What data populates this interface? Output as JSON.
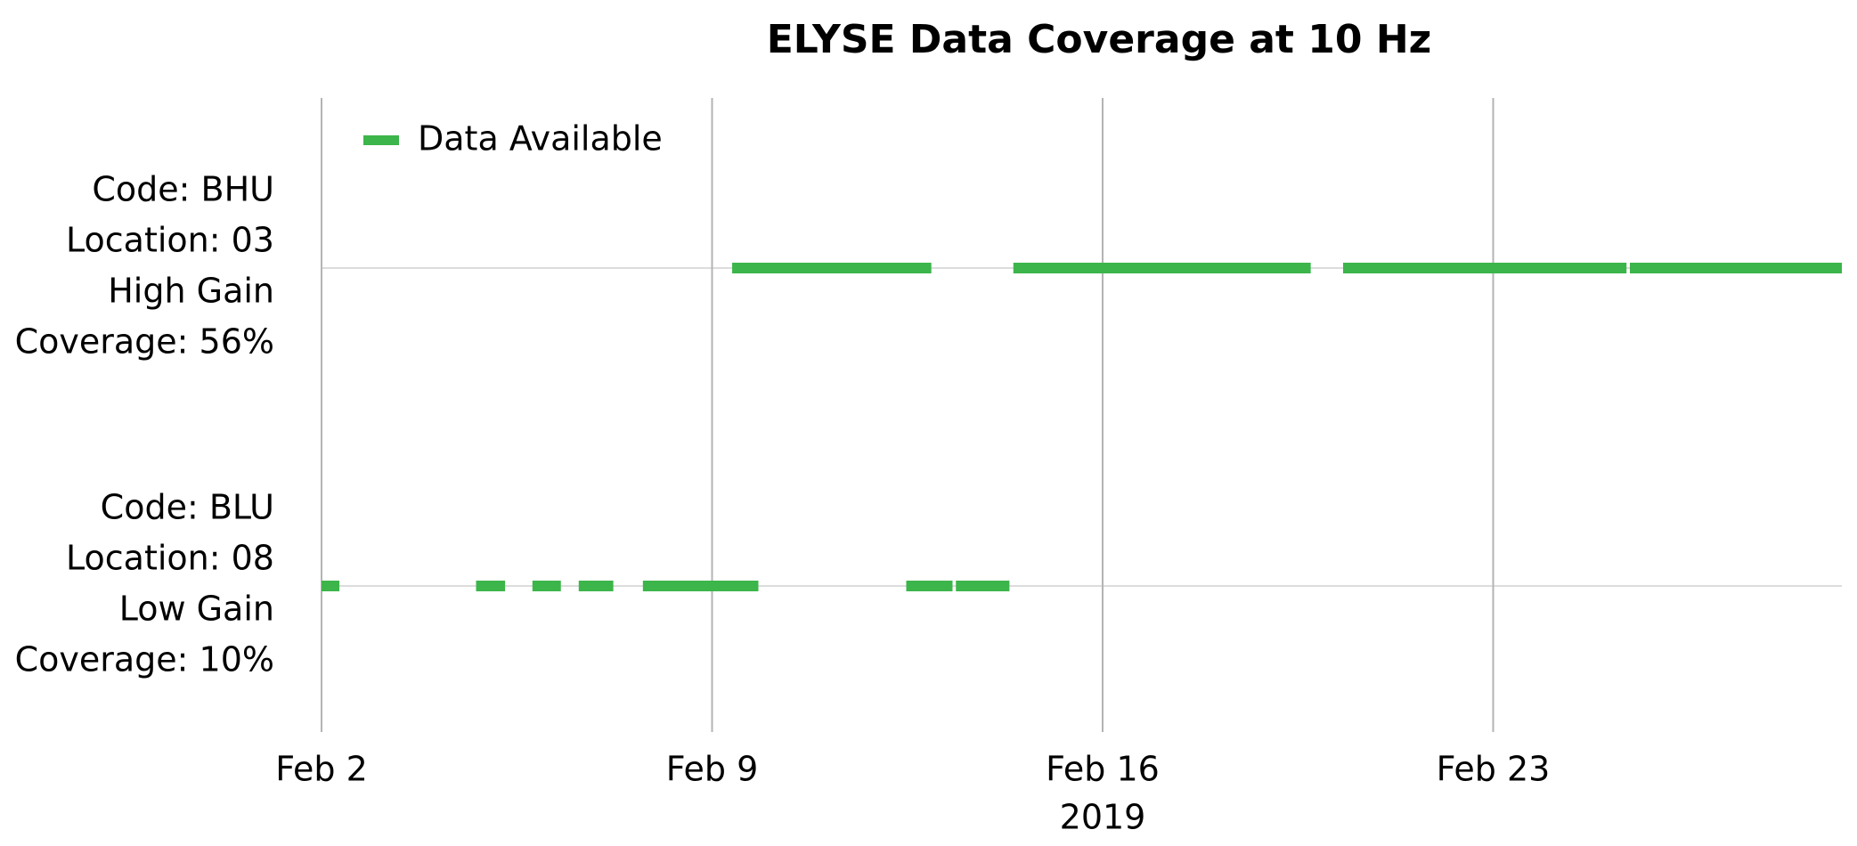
{
  "chart_data": {
    "type": "timeline",
    "title": "ELYSE Data Coverage at 10 Hz",
    "x_label": "2019",
    "categories": [
      [
        "Code: BHU",
        "Location: 03",
        "High Gain",
        "Coverage: 56%"
      ],
      [
        "Code: BLU",
        "Location: 08",
        "Low Gain",
        "Coverage: 10%"
      ]
    ],
    "series": [
      {
        "name": "Data Available",
        "color": "#3cb54a",
        "values": [
          [
            [
              9.36,
              12.93
            ],
            [
              14.4,
              19.73
            ],
            [
              20.31,
              25.39
            ],
            [
              25.45,
              29.25
            ]
          ],
          [
            [
              2.0,
              2.32
            ],
            [
              4.77,
              5.29
            ],
            [
              5.78,
              6.29
            ],
            [
              6.61,
              7.23
            ],
            [
              7.76,
              9.83
            ],
            [
              12.48,
              13.31
            ],
            [
              13.37,
              14.33
            ]
          ]
        ]
      }
    ],
    "xlim": [
      2,
      29.25
    ],
    "xticks": [
      {
        "value": 2,
        "label": "Feb 2"
      },
      {
        "value": 9,
        "label": "Feb 9"
      },
      {
        "value": 16,
        "label": "Feb 16"
      },
      {
        "value": 23,
        "label": "Feb 23"
      }
    ],
    "grid": true,
    "legend": "upper left"
  }
}
